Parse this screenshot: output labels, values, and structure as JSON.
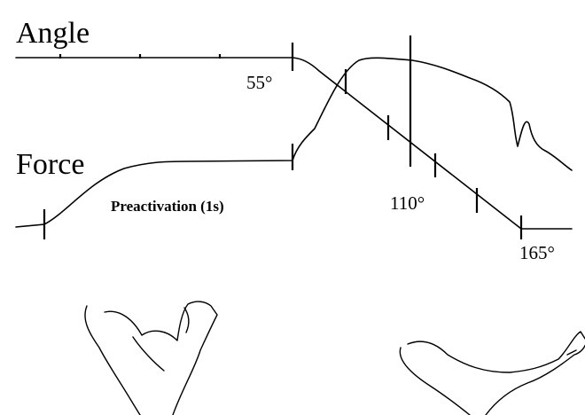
{
  "labels": {
    "angle": "Angle",
    "force": "Force",
    "preactivation": "Preactivation (1s)"
  },
  "angles": {
    "start": "55°",
    "middle": "110°",
    "end": "165°"
  }
}
